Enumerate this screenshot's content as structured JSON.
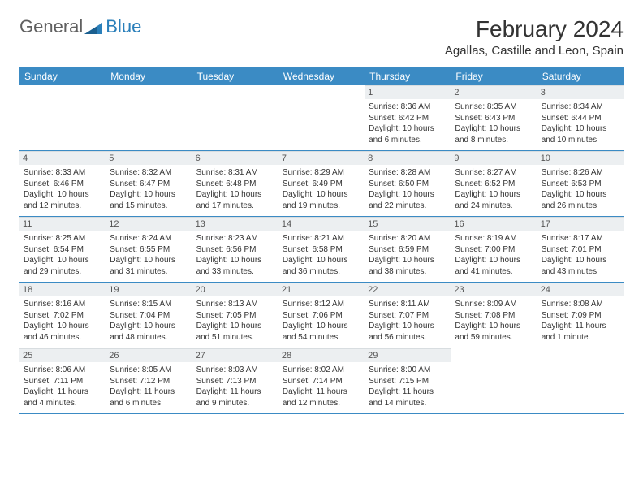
{
  "logo": {
    "text1": "General",
    "text2": "Blue"
  },
  "title": "February 2024",
  "location": "Agallas, Castille and Leon, Spain",
  "colors": {
    "header_bg": "#3b8bc4",
    "header_text": "#ffffff",
    "daynum_bg": "#eceff1",
    "row_border": "#3b8bc4",
    "logo_blue": "#2a7fba",
    "logo_gray": "#606060"
  },
  "day_headers": [
    "Sunday",
    "Monday",
    "Tuesday",
    "Wednesday",
    "Thursday",
    "Friday",
    "Saturday"
  ],
  "weeks": [
    [
      null,
      null,
      null,
      null,
      {
        "n": "1",
        "sr": "Sunrise: 8:36 AM",
        "ss": "Sunset: 6:42 PM",
        "d1": "Daylight: 10 hours",
        "d2": "and 6 minutes."
      },
      {
        "n": "2",
        "sr": "Sunrise: 8:35 AM",
        "ss": "Sunset: 6:43 PM",
        "d1": "Daylight: 10 hours",
        "d2": "and 8 minutes."
      },
      {
        "n": "3",
        "sr": "Sunrise: 8:34 AM",
        "ss": "Sunset: 6:44 PM",
        "d1": "Daylight: 10 hours",
        "d2": "and 10 minutes."
      }
    ],
    [
      {
        "n": "4",
        "sr": "Sunrise: 8:33 AM",
        "ss": "Sunset: 6:46 PM",
        "d1": "Daylight: 10 hours",
        "d2": "and 12 minutes."
      },
      {
        "n": "5",
        "sr": "Sunrise: 8:32 AM",
        "ss": "Sunset: 6:47 PM",
        "d1": "Daylight: 10 hours",
        "d2": "and 15 minutes."
      },
      {
        "n": "6",
        "sr": "Sunrise: 8:31 AM",
        "ss": "Sunset: 6:48 PM",
        "d1": "Daylight: 10 hours",
        "d2": "and 17 minutes."
      },
      {
        "n": "7",
        "sr": "Sunrise: 8:29 AM",
        "ss": "Sunset: 6:49 PM",
        "d1": "Daylight: 10 hours",
        "d2": "and 19 minutes."
      },
      {
        "n": "8",
        "sr": "Sunrise: 8:28 AM",
        "ss": "Sunset: 6:50 PM",
        "d1": "Daylight: 10 hours",
        "d2": "and 22 minutes."
      },
      {
        "n": "9",
        "sr": "Sunrise: 8:27 AM",
        "ss": "Sunset: 6:52 PM",
        "d1": "Daylight: 10 hours",
        "d2": "and 24 minutes."
      },
      {
        "n": "10",
        "sr": "Sunrise: 8:26 AM",
        "ss": "Sunset: 6:53 PM",
        "d1": "Daylight: 10 hours",
        "d2": "and 26 minutes."
      }
    ],
    [
      {
        "n": "11",
        "sr": "Sunrise: 8:25 AM",
        "ss": "Sunset: 6:54 PM",
        "d1": "Daylight: 10 hours",
        "d2": "and 29 minutes."
      },
      {
        "n": "12",
        "sr": "Sunrise: 8:24 AM",
        "ss": "Sunset: 6:55 PM",
        "d1": "Daylight: 10 hours",
        "d2": "and 31 minutes."
      },
      {
        "n": "13",
        "sr": "Sunrise: 8:23 AM",
        "ss": "Sunset: 6:56 PM",
        "d1": "Daylight: 10 hours",
        "d2": "and 33 minutes."
      },
      {
        "n": "14",
        "sr": "Sunrise: 8:21 AM",
        "ss": "Sunset: 6:58 PM",
        "d1": "Daylight: 10 hours",
        "d2": "and 36 minutes."
      },
      {
        "n": "15",
        "sr": "Sunrise: 8:20 AM",
        "ss": "Sunset: 6:59 PM",
        "d1": "Daylight: 10 hours",
        "d2": "and 38 minutes."
      },
      {
        "n": "16",
        "sr": "Sunrise: 8:19 AM",
        "ss": "Sunset: 7:00 PM",
        "d1": "Daylight: 10 hours",
        "d2": "and 41 minutes."
      },
      {
        "n": "17",
        "sr": "Sunrise: 8:17 AM",
        "ss": "Sunset: 7:01 PM",
        "d1": "Daylight: 10 hours",
        "d2": "and 43 minutes."
      }
    ],
    [
      {
        "n": "18",
        "sr": "Sunrise: 8:16 AM",
        "ss": "Sunset: 7:02 PM",
        "d1": "Daylight: 10 hours",
        "d2": "and 46 minutes."
      },
      {
        "n": "19",
        "sr": "Sunrise: 8:15 AM",
        "ss": "Sunset: 7:04 PM",
        "d1": "Daylight: 10 hours",
        "d2": "and 48 minutes."
      },
      {
        "n": "20",
        "sr": "Sunrise: 8:13 AM",
        "ss": "Sunset: 7:05 PM",
        "d1": "Daylight: 10 hours",
        "d2": "and 51 minutes."
      },
      {
        "n": "21",
        "sr": "Sunrise: 8:12 AM",
        "ss": "Sunset: 7:06 PM",
        "d1": "Daylight: 10 hours",
        "d2": "and 54 minutes."
      },
      {
        "n": "22",
        "sr": "Sunrise: 8:11 AM",
        "ss": "Sunset: 7:07 PM",
        "d1": "Daylight: 10 hours",
        "d2": "and 56 minutes."
      },
      {
        "n": "23",
        "sr": "Sunrise: 8:09 AM",
        "ss": "Sunset: 7:08 PM",
        "d1": "Daylight: 10 hours",
        "d2": "and 59 minutes."
      },
      {
        "n": "24",
        "sr": "Sunrise: 8:08 AM",
        "ss": "Sunset: 7:09 PM",
        "d1": "Daylight: 11 hours",
        "d2": "and 1 minute."
      }
    ],
    [
      {
        "n": "25",
        "sr": "Sunrise: 8:06 AM",
        "ss": "Sunset: 7:11 PM",
        "d1": "Daylight: 11 hours",
        "d2": "and 4 minutes."
      },
      {
        "n": "26",
        "sr": "Sunrise: 8:05 AM",
        "ss": "Sunset: 7:12 PM",
        "d1": "Daylight: 11 hours",
        "d2": "and 6 minutes."
      },
      {
        "n": "27",
        "sr": "Sunrise: 8:03 AM",
        "ss": "Sunset: 7:13 PM",
        "d1": "Daylight: 11 hours",
        "d2": "and 9 minutes."
      },
      {
        "n": "28",
        "sr": "Sunrise: 8:02 AM",
        "ss": "Sunset: 7:14 PM",
        "d1": "Daylight: 11 hours",
        "d2": "and 12 minutes."
      },
      {
        "n": "29",
        "sr": "Sunrise: 8:00 AM",
        "ss": "Sunset: 7:15 PM",
        "d1": "Daylight: 11 hours",
        "d2": "and 14 minutes."
      },
      null,
      null
    ]
  ]
}
